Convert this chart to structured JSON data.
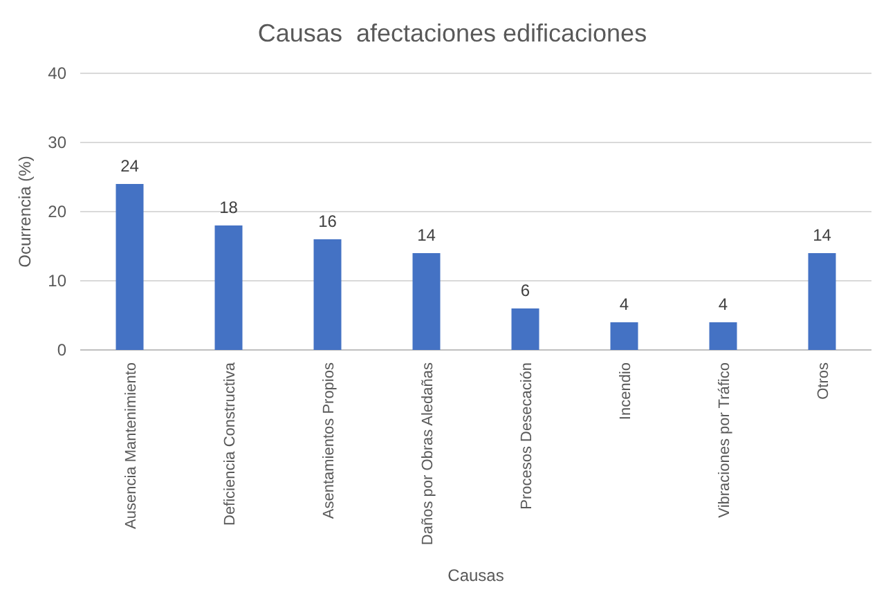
{
  "chart_data": {
    "type": "bar",
    "title": "Causas  afectaciones edificaciones",
    "xlabel": "Causas",
    "ylabel": "Ocurrencia (%)",
    "categories": [
      "Ausencia Mantenimiento",
      "Deficiencia Constructiva",
      "Asentamientos Propios",
      "Daños por Obras Aledañas",
      "Procesos Desecación",
      "Incendio",
      "Vibraciones por Tráfico",
      "Otros"
    ],
    "values": [
      24,
      18,
      16,
      14,
      6,
      4,
      4,
      14
    ],
    "color": "#4472c4",
    "ylim": [
      0,
      40
    ],
    "yticks": [
      0,
      10,
      20,
      30,
      40
    ],
    "grid": "y",
    "data_labels": true
  }
}
